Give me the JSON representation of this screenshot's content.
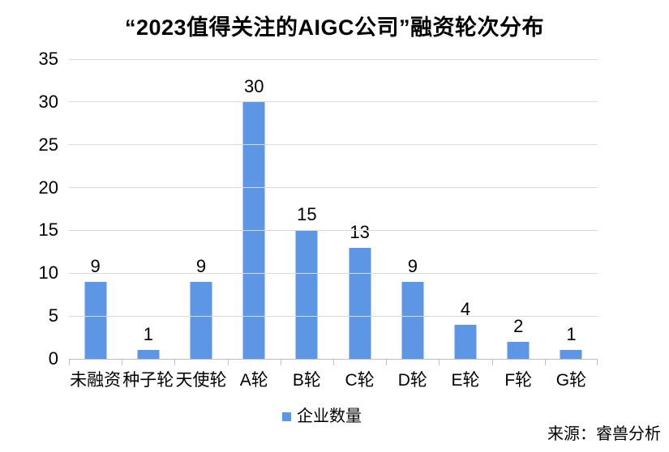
{
  "chart_data": {
    "type": "bar",
    "title": "“2023值得关注的AIGC公司”融资轮次分布",
    "categories": [
      "未融资",
      "种子轮",
      "天使轮",
      "A轮",
      "B轮",
      "C轮",
      "D轮",
      "E轮",
      "F轮",
      "G轮"
    ],
    "values": [
      9,
      1,
      9,
      30,
      15,
      13,
      9,
      4,
      2,
      1
    ],
    "series_name": "企业数量",
    "xlabel": "",
    "ylabel": "",
    "ylim": [
      0,
      35
    ],
    "ytick_step": 5,
    "yticks": [
      0,
      5,
      10,
      15,
      20,
      25,
      30,
      35
    ],
    "grid": true,
    "legend_position": "bottom-center",
    "data_labels": true
  },
  "source": "来源：睿兽分析",
  "colors": {
    "bar": "#5C96E4",
    "gridline": "#D9D9D9",
    "axis_line": "#BFBFBF",
    "text": "#000000",
    "background": "#FFFFFF"
  }
}
